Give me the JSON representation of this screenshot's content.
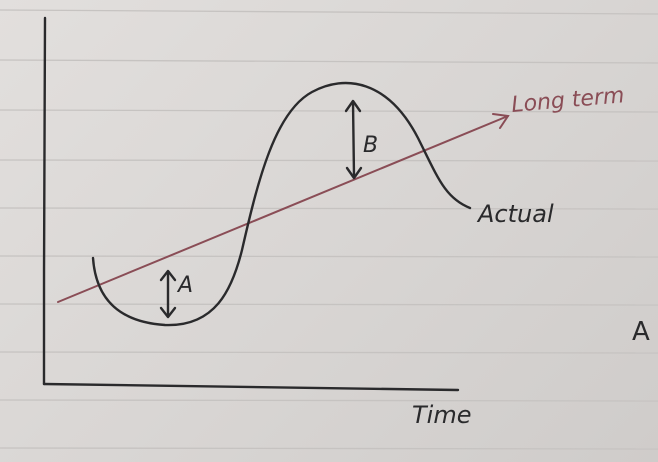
{
  "labels": {
    "long_term": "Long term",
    "actual": "Actual",
    "time": "Time",
    "gap_a": "A",
    "gap_b": "B",
    "margin_letter": "A"
  },
  "colors": {
    "paper": "#dcd9d7",
    "rule_line": "#c8c5c3",
    "ink": "#2a2a2c",
    "red_ink": "#8a4d56"
  }
}
